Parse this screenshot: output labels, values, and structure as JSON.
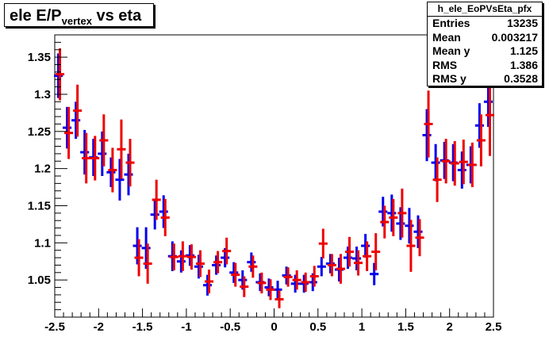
{
  "title": {
    "main": "ele E/P",
    "sub": "vertex",
    "rest": " vs eta"
  },
  "stats": {
    "name": "h_ele_EoPVsEta_pfx",
    "rows": [
      {
        "label": "Entries",
        "value": "13235"
      },
      {
        "label": "Mean",
        "value": "0.003217"
      },
      {
        "label": "Mean y",
        "value": "1.125"
      },
      {
        "label": "RMS",
        "value": "1.386"
      },
      {
        "label": "RMS y",
        "value": "0.3528"
      }
    ]
  },
  "chart_data": {
    "type": "scatter",
    "xlim": [
      -2.5,
      2.5
    ],
    "ylim": [
      1.0,
      1.38
    ],
    "x_ticks": [
      -2.5,
      -2,
      -1.5,
      -1,
      -0.5,
      0,
      0.5,
      1,
      1.5,
      2,
      2.5
    ],
    "x_tick_labels": [
      "-2.5",
      "-2",
      "-1.5",
      "-1",
      "-0.5",
      "0",
      "0.5",
      "1",
      "1.5",
      "2",
      "2.5"
    ],
    "y_ticks": [
      1.05,
      1.1,
      1.15,
      1.2,
      1.25,
      1.3,
      1.35
    ],
    "y_tick_labels": [
      "1.05",
      "1.1",
      "1.15",
      "1.2",
      "1.25",
      "1.3",
      "1.35"
    ],
    "bin_width": 0.1,
    "series": [
      {
        "color": "#0000ee",
        "x": [
          -2.45,
          -2.35,
          -2.25,
          -2.15,
          -2.05,
          -1.95,
          -1.85,
          -1.75,
          -1.65,
          -1.55,
          -1.45,
          -1.35,
          -1.25,
          -1.15,
          -1.05,
          -0.95,
          -0.85,
          -0.75,
          -0.65,
          -0.55,
          -0.45,
          -0.35,
          -0.25,
          -0.15,
          -0.05,
          0.05,
          0.15,
          0.25,
          0.35,
          0.45,
          0.55,
          0.65,
          0.75,
          0.85,
          0.95,
          1.05,
          1.15,
          1.25,
          1.35,
          1.45,
          1.55,
          1.65,
          1.75,
          1.85,
          1.95,
          2.05,
          2.15,
          2.25,
          2.35,
          2.45
        ],
        "y": [
          1.325,
          1.255,
          1.265,
          1.222,
          1.215,
          1.22,
          1.195,
          1.185,
          1.192,
          1.096,
          1.093,
          1.138,
          1.142,
          1.082,
          1.075,
          1.083,
          1.068,
          1.043,
          1.07,
          1.08,
          1.06,
          1.05,
          1.074,
          1.047,
          1.04,
          1.037,
          1.056,
          1.045,
          1.045,
          1.047,
          1.068,
          1.072,
          1.064,
          1.08,
          1.079,
          1.096,
          1.058,
          1.142,
          1.14,
          1.126,
          1.123,
          1.115,
          1.245,
          1.208,
          1.211,
          1.208,
          1.198,
          1.205,
          1.258,
          1.29
        ],
        "err": [
          0.03,
          0.028,
          0.025,
          0.03,
          0.025,
          0.03,
          0.02,
          0.028,
          0.028,
          0.025,
          0.028,
          0.02,
          0.022,
          0.02,
          0.015,
          0.014,
          0.016,
          0.014,
          0.013,
          0.013,
          0.014,
          0.013,
          0.013,
          0.012,
          0.012,
          0.012,
          0.012,
          0.012,
          0.012,
          0.012,
          0.013,
          0.013,
          0.016,
          0.015,
          0.016,
          0.016,
          0.015,
          0.02,
          0.025,
          0.022,
          0.024,
          0.022,
          0.035,
          0.025,
          0.025,
          0.025,
          0.025,
          0.025,
          0.03,
          0.034
        ]
      },
      {
        "color": "#ee0000",
        "x": [
          -2.45,
          -2.35,
          -2.25,
          -2.15,
          -2.05,
          -1.95,
          -1.85,
          -1.75,
          -1.65,
          -1.55,
          -1.45,
          -1.35,
          -1.25,
          -1.15,
          -1.05,
          -0.95,
          -0.85,
          -0.75,
          -0.65,
          -0.55,
          -0.45,
          -0.35,
          -0.25,
          -0.15,
          -0.05,
          0.05,
          0.15,
          0.25,
          0.35,
          0.45,
          0.55,
          0.65,
          0.75,
          0.85,
          0.95,
          1.05,
          1.15,
          1.25,
          1.35,
          1.45,
          1.55,
          1.65,
          1.75,
          1.85,
          1.95,
          2.05,
          2.15,
          2.25,
          2.35,
          2.45
        ],
        "y": [
          1.327,
          1.248,
          1.278,
          1.214,
          1.214,
          1.238,
          1.198,
          1.226,
          1.208,
          1.08,
          1.072,
          1.158,
          1.134,
          1.081,
          1.082,
          1.081,
          1.072,
          1.048,
          1.074,
          1.089,
          1.057,
          1.041,
          1.068,
          1.046,
          1.037,
          1.024,
          1.054,
          1.05,
          1.047,
          1.055,
          1.099,
          1.07,
          1.065,
          1.088,
          1.073,
          1.082,
          1.088,
          1.128,
          1.134,
          1.14,
          1.096,
          1.107,
          1.26,
          1.185,
          1.21,
          1.207,
          1.209,
          1.205,
          1.238,
          1.272
        ],
        "err": [
          0.035,
          0.035,
          0.035,
          0.034,
          0.03,
          0.035,
          0.03,
          0.04,
          0.032,
          0.025,
          0.027,
          0.027,
          0.025,
          0.018,
          0.02,
          0.017,
          0.018,
          0.016,
          0.015,
          0.018,
          0.016,
          0.014,
          0.015,
          0.014,
          0.014,
          0.012,
          0.013,
          0.013,
          0.013,
          0.014,
          0.02,
          0.015,
          0.02,
          0.02,
          0.017,
          0.02,
          0.025,
          0.022,
          0.025,
          0.033,
          0.035,
          0.025,
          0.045,
          0.03,
          0.03,
          0.03,
          0.03,
          0.03,
          0.035,
          0.055
        ]
      }
    ]
  }
}
